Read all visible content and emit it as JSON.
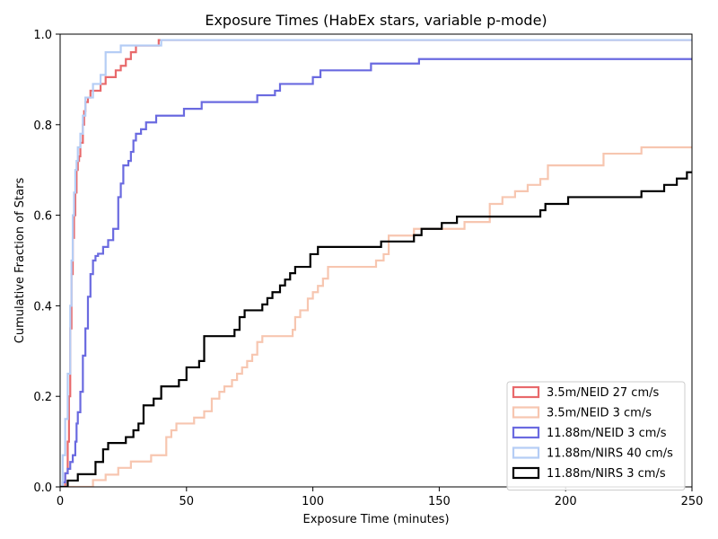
{
  "chart_data": {
    "type": "line",
    "title": "Exposure Times (HabEx stars, variable p-mode)",
    "xlabel": "Exposure Time (minutes)",
    "ylabel": "Cumulative Fraction of Stars",
    "xlim": [
      0,
      250
    ],
    "ylim": [
      0,
      1.0
    ],
    "xticks": [
      "0",
      "50",
      "100",
      "150",
      "200",
      "250"
    ],
    "yticks": [
      "0.0",
      "0.2",
      "0.4",
      "0.6",
      "0.8",
      "1.0"
    ],
    "grid": false,
    "legend_position": "lower-right",
    "step": true,
    "series": [
      {
        "name": "3.5m/NEID 27 cm/s",
        "color": "#e8696b",
        "x": [
          0,
          2,
          3,
          3.5,
          4,
          4.5,
          5,
          5.5,
          6,
          6.5,
          7,
          7.5,
          8,
          9,
          9.5,
          10,
          11,
          12,
          14,
          16,
          18,
          20,
          22,
          24,
          26,
          28,
          30,
          39,
          250
        ],
        "y": [
          0,
          0.03,
          0.1,
          0.2,
          0.35,
          0.47,
          0.55,
          0.6,
          0.65,
          0.7,
          0.72,
          0.73,
          0.76,
          0.8,
          0.83,
          0.85,
          0.86,
          0.875,
          0.875,
          0.89,
          0.905,
          0.905,
          0.92,
          0.93,
          0.945,
          0.96,
          0.975,
          0.987,
          0.987
        ]
      },
      {
        "name": "3.5m/NEID 3 cm/s",
        "color": "#f7c6b0",
        "x": [
          0,
          12,
          13,
          18,
          23,
          28,
          36,
          42,
          44,
          46,
          50,
          53,
          57,
          60,
          63,
          65,
          68,
          70,
          72,
          74,
          76,
          78,
          80,
          85,
          92,
          93,
          95,
          98,
          100,
          102,
          104,
          106,
          108,
          125,
          128,
          130,
          140,
          160,
          170,
          175,
          180,
          185,
          190,
          193,
          215,
          230,
          245,
          250
        ],
        "y": [
          0,
          0.0,
          0.015,
          0.027,
          0.042,
          0.056,
          0.07,
          0.11,
          0.125,
          0.14,
          0.14,
          0.153,
          0.167,
          0.195,
          0.21,
          0.222,
          0.236,
          0.25,
          0.264,
          0.278,
          0.292,
          0.32,
          0.333,
          0.333,
          0.347,
          0.375,
          0.39,
          0.416,
          0.43,
          0.444,
          0.46,
          0.486,
          0.486,
          0.5,
          0.514,
          0.555,
          0.57,
          0.585,
          0.625,
          0.64,
          0.653,
          0.667,
          0.68,
          0.71,
          0.736,
          0.75,
          0.75,
          0.75
        ]
      },
      {
        "name": "11.88m/NEID 3 cm/s",
        "color": "#6a6ae0",
        "x": [
          0,
          1,
          2,
          3,
          4,
          5,
          6,
          6.5,
          7,
          8,
          9,
          10,
          11,
          12,
          13,
          14,
          15,
          17,
          19,
          21,
          23,
          24,
          25,
          26,
          27,
          28,
          29,
          30,
          32,
          34,
          38,
          42,
          49,
          56,
          78,
          85,
          87,
          100,
          103,
          123,
          142,
          250
        ],
        "y": [
          0,
          0.01,
          0.03,
          0.04,
          0.055,
          0.07,
          0.1,
          0.14,
          0.165,
          0.21,
          0.29,
          0.35,
          0.42,
          0.47,
          0.5,
          0.51,
          0.515,
          0.53,
          0.545,
          0.57,
          0.64,
          0.67,
          0.71,
          0.71,
          0.72,
          0.74,
          0.765,
          0.78,
          0.79,
          0.805,
          0.82,
          0.82,
          0.835,
          0.85,
          0.865,
          0.875,
          0.89,
          0.905,
          0.92,
          0.935,
          0.945,
          0.945
        ]
      },
      {
        "name": "11.88m/NIRS 40 cm/s",
        "color": "#b5cdf5",
        "x": [
          0,
          1,
          2,
          3,
          4,
          4.5,
          5,
          5.5,
          6,
          6.5,
          7,
          8,
          9,
          10,
          11,
          13,
          16,
          18,
          24,
          30,
          40,
          250
        ],
        "y": [
          0,
          0.07,
          0.15,
          0.25,
          0.4,
          0.5,
          0.6,
          0.65,
          0.7,
          0.72,
          0.75,
          0.78,
          0.82,
          0.86,
          0.86,
          0.89,
          0.91,
          0.96,
          0.975,
          0.975,
          0.987,
          0.987
        ]
      },
      {
        "name": "11.88m/NIRS 3 cm/s",
        "color": "#000000",
        "x": [
          0,
          2,
          3,
          7,
          14,
          17,
          19,
          26,
          29,
          31,
          33,
          37,
          40,
          47,
          50,
          55,
          57,
          69,
          71,
          73,
          80,
          82,
          84,
          87,
          89,
          91,
          93,
          99,
          102,
          108,
          127,
          140,
          143,
          151,
          157,
          190,
          192,
          195,
          201,
          230,
          239,
          244,
          248,
          250
        ],
        "y": [
          0,
          0.0,
          0.014,
          0.028,
          0.055,
          0.083,
          0.097,
          0.11,
          0.125,
          0.14,
          0.18,
          0.195,
          0.222,
          0.236,
          0.264,
          0.278,
          0.333,
          0.347,
          0.375,
          0.39,
          0.403,
          0.417,
          0.43,
          0.445,
          0.458,
          0.472,
          0.486,
          0.514,
          0.53,
          0.53,
          0.542,
          0.556,
          0.57,
          0.583,
          0.597,
          0.611,
          0.625,
          0.625,
          0.64,
          0.653,
          0.667,
          0.681,
          0.695,
          0.695
        ]
      }
    ]
  }
}
